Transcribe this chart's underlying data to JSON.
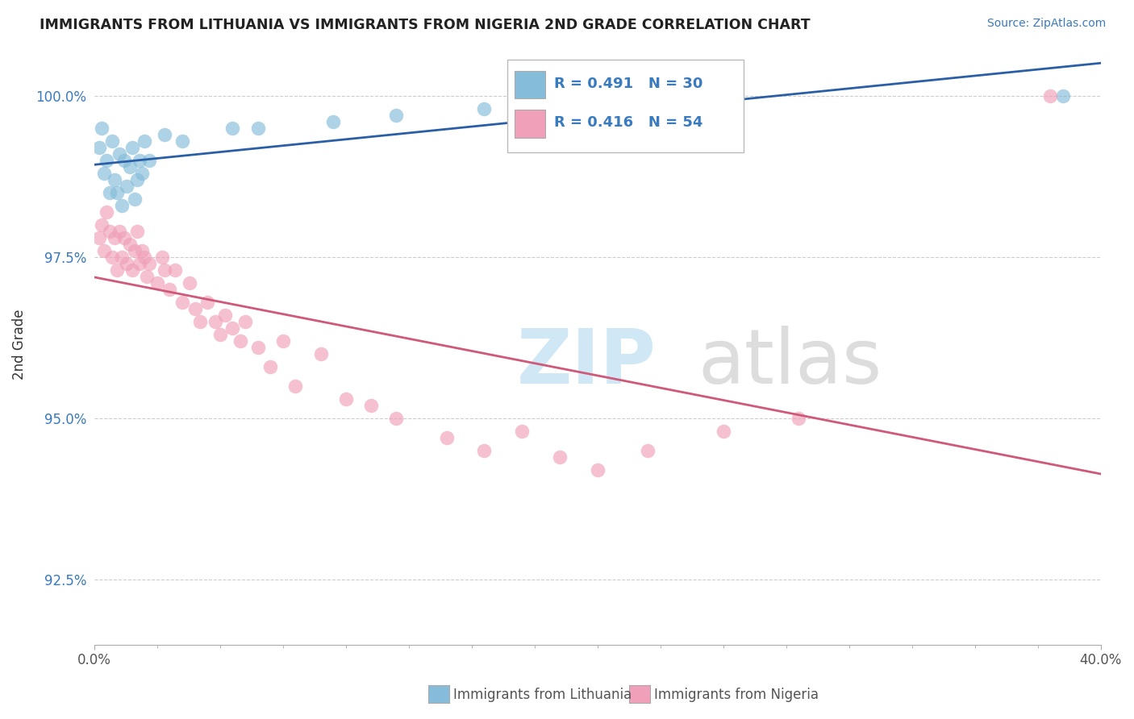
{
  "title": "IMMIGRANTS FROM LITHUANIA VS IMMIGRANTS FROM NIGERIA 2ND GRADE CORRELATION CHART",
  "source_text": "Source: ZipAtlas.com",
  "ylabel": "2nd Grade",
  "x_min": 0.0,
  "x_max": 40.0,
  "y_min": 91.5,
  "y_max": 100.8,
  "x_ticks": [
    0.0,
    40.0
  ],
  "x_tick_labels": [
    "0.0%",
    "40.0%"
  ],
  "y_ticks": [
    92.5,
    95.0,
    97.5,
    100.0
  ],
  "y_tick_labels": [
    "92.5%",
    "95.0%",
    "97.5%",
    "100.0%"
  ],
  "blue_color": "#85bcd9",
  "pink_color": "#f0a0b8",
  "blue_line_color": "#2a5fa8",
  "pink_line_color": "#d05878",
  "legend_R1": "R = 0.491",
  "legend_N1": "N = 30",
  "legend_R2": "R = 0.416",
  "legend_N2": "N = 54",
  "lithuania_x": [
    0.2,
    0.3,
    0.4,
    0.5,
    0.6,
    0.7,
    0.8,
    0.9,
    1.0,
    1.1,
    1.2,
    1.3,
    1.4,
    1.5,
    1.6,
    1.7,
    1.8,
    1.9,
    2.0,
    2.2,
    2.8,
    3.5,
    5.5,
    6.5,
    9.5,
    12.0,
    15.5,
    19.0,
    22.0,
    38.5
  ],
  "lithuania_y": [
    99.2,
    99.5,
    98.8,
    99.0,
    98.5,
    99.3,
    98.7,
    98.5,
    99.1,
    98.3,
    99.0,
    98.6,
    98.9,
    99.2,
    98.4,
    98.7,
    99.0,
    98.8,
    99.3,
    99.0,
    99.4,
    99.3,
    99.5,
    99.5,
    99.6,
    99.7,
    99.8,
    99.8,
    99.9,
    100.0
  ],
  "nigeria_x": [
    0.2,
    0.3,
    0.4,
    0.5,
    0.6,
    0.7,
    0.8,
    0.9,
    1.0,
    1.1,
    1.2,
    1.3,
    1.4,
    1.5,
    1.6,
    1.7,
    1.8,
    1.9,
    2.0,
    2.1,
    2.2,
    2.5,
    2.7,
    2.8,
    3.0,
    3.2,
    3.5,
    3.8,
    4.0,
    4.2,
    4.5,
    4.8,
    5.0,
    5.2,
    5.5,
    5.8,
    6.0,
    6.5,
    7.0,
    7.5,
    8.0,
    9.0,
    10.0,
    11.0,
    12.0,
    14.0,
    15.5,
    17.0,
    18.5,
    20.0,
    22.0,
    25.0,
    28.0,
    38.0
  ],
  "nigeria_y": [
    97.8,
    98.0,
    97.6,
    98.2,
    97.9,
    97.5,
    97.8,
    97.3,
    97.9,
    97.5,
    97.8,
    97.4,
    97.7,
    97.3,
    97.6,
    97.9,
    97.4,
    97.6,
    97.5,
    97.2,
    97.4,
    97.1,
    97.5,
    97.3,
    97.0,
    97.3,
    96.8,
    97.1,
    96.7,
    96.5,
    96.8,
    96.5,
    96.3,
    96.6,
    96.4,
    96.2,
    96.5,
    96.1,
    95.8,
    96.2,
    95.5,
    96.0,
    95.3,
    95.2,
    95.0,
    94.7,
    94.5,
    94.8,
    94.4,
    94.2,
    94.5,
    94.8,
    95.0,
    100.0
  ]
}
